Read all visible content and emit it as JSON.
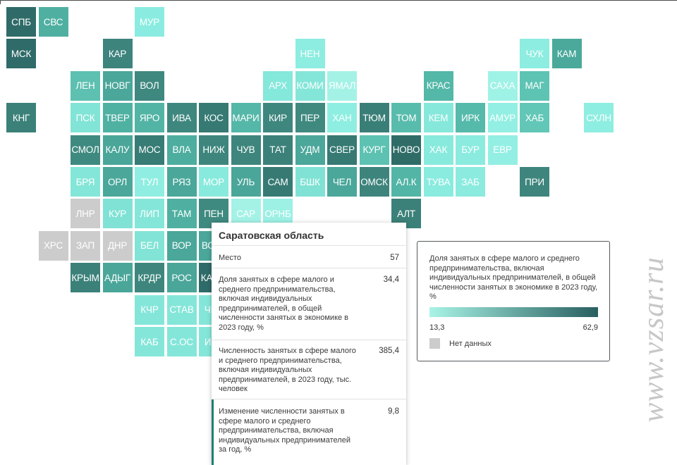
{
  "colors": {
    "scale_low": "#a8f3e6",
    "scale_high": "#295f60",
    "no_data": "#cccccc"
  },
  "map": {
    "regions": [
      {
        "code": "СПБ",
        "row": 0,
        "col": 0,
        "color": "#2f6b68"
      },
      {
        "code": "СВС",
        "row": 0,
        "col": 1,
        "color": "#4fb0a1"
      },
      {
        "code": "МУР",
        "row": 0,
        "col": 4,
        "color": "#8aece0"
      },
      {
        "code": "МСК",
        "row": 1,
        "col": 0,
        "color": "#2f6b68"
      },
      {
        "code": "КАР",
        "row": 1,
        "col": 3,
        "color": "#3d847d"
      },
      {
        "code": "НЕН",
        "row": 1,
        "col": 9,
        "color": "#8cede0"
      },
      {
        "code": "ЧУК",
        "row": 1,
        "col": 16,
        "color": "#8cede0"
      },
      {
        "code": "КАМ",
        "row": 1,
        "col": 17,
        "color": "#4aa99b"
      },
      {
        "code": "ЛЕН",
        "row": 2,
        "col": 2,
        "color": "#5dc0b0"
      },
      {
        "code": "НОВГ",
        "row": 2,
        "col": 3,
        "color": "#4aa79a"
      },
      {
        "code": "ВОЛ",
        "row": 2,
        "col": 4,
        "color": "#3e887f"
      },
      {
        "code": "АРХ",
        "row": 2,
        "col": 8,
        "color": "#84e8db"
      },
      {
        "code": "КОМИ",
        "row": 2,
        "col": 9,
        "color": "#84e6d9"
      },
      {
        "code": "ЯМАЛ",
        "row": 2,
        "col": 10,
        "color": "#a4f2e6"
      },
      {
        "code": "КРАС",
        "row": 2,
        "col": 13,
        "color": "#53b8a8"
      },
      {
        "code": "САХА",
        "row": 2,
        "col": 15,
        "color": "#9ff2e6"
      },
      {
        "code": "МАГ",
        "row": 2,
        "col": 16,
        "color": "#5dc4b4"
      },
      {
        "code": "КНГ",
        "row": 3,
        "col": 0,
        "color": "#3b8179"
      },
      {
        "code": "ПСК",
        "row": 3,
        "col": 2,
        "color": "#82e4d6"
      },
      {
        "code": "ТВЕР",
        "row": 3,
        "col": 3,
        "color": "#4fb1a2"
      },
      {
        "code": "ЯРО",
        "row": 3,
        "col": 4,
        "color": "#52b4a5"
      },
      {
        "code": "ИВА",
        "row": 3,
        "col": 5,
        "color": "#3e877e"
      },
      {
        "code": "КОС",
        "row": 3,
        "col": 6,
        "color": "#367a73"
      },
      {
        "code": "МАРИ",
        "row": 3,
        "col": 7,
        "color": "#54b7a8"
      },
      {
        "code": "КИР",
        "row": 3,
        "col": 8,
        "color": "#3e877e"
      },
      {
        "code": "ПЕР",
        "row": 3,
        "col": 9,
        "color": "#40897f"
      },
      {
        "code": "ХАН",
        "row": 3,
        "col": 10,
        "color": "#8eeee1"
      },
      {
        "code": "ТЮМ",
        "row": 3,
        "col": 11,
        "color": "#3a7f77"
      },
      {
        "code": "ТОМ",
        "row": 3,
        "col": 12,
        "color": "#58bcac"
      },
      {
        "code": "КЕМ",
        "row": 3,
        "col": 13,
        "color": "#86e8db"
      },
      {
        "code": "ИРК",
        "row": 3,
        "col": 14,
        "color": "#56baab"
      },
      {
        "code": "АМУР",
        "row": 3,
        "col": 15,
        "color": "#93efe3"
      },
      {
        "code": "ХАБ",
        "row": 3,
        "col": 16,
        "color": "#62c7b7"
      },
      {
        "code": "СХЛН",
        "row": 3,
        "col": 18,
        "color": "#8eeee1"
      },
      {
        "code": "СМОЛ",
        "row": 4,
        "col": 2,
        "color": "#3f8a80"
      },
      {
        "code": "КАЛУ",
        "row": 4,
        "col": 3,
        "color": "#4aa699"
      },
      {
        "code": "МОС",
        "row": 4,
        "col": 4,
        "color": "#377c75"
      },
      {
        "code": "ВЛА",
        "row": 4,
        "col": 5,
        "color": "#4dae9f"
      },
      {
        "code": "НИЖ",
        "row": 4,
        "col": 6,
        "color": "#3e867d"
      },
      {
        "code": "ЧУВ",
        "row": 4,
        "col": 7,
        "color": "#3e867d"
      },
      {
        "code": "ТАТ",
        "row": 4,
        "col": 8,
        "color": "#3b8179"
      },
      {
        "code": "УДМ",
        "row": 4,
        "col": 9,
        "color": "#4ba79a"
      },
      {
        "code": "СВЕР",
        "row": 4,
        "col": 10,
        "color": "#367a73"
      },
      {
        "code": "КУРГ",
        "row": 4,
        "col": 11,
        "color": "#5dc2b2"
      },
      {
        "code": "НОВО",
        "row": 4,
        "col": 12,
        "color": "#2f6c68"
      },
      {
        "code": "ХАК",
        "row": 4,
        "col": 13,
        "color": "#88eadd"
      },
      {
        "code": "БУР",
        "row": 4,
        "col": 14,
        "color": "#8bebdf"
      },
      {
        "code": "ЕВР",
        "row": 4,
        "col": 15,
        "color": "#93efe3"
      },
      {
        "code": "БРЯ",
        "row": 5,
        "col": 2,
        "color": "#83e6d8"
      },
      {
        "code": "ОРЛ",
        "row": 5,
        "col": 3,
        "color": "#4aa79a"
      },
      {
        "code": "ТУЛ",
        "row": 5,
        "col": 4,
        "color": "#8feee1"
      },
      {
        "code": "РЯЗ",
        "row": 5,
        "col": 5,
        "color": "#4aa79a"
      },
      {
        "code": "МОР",
        "row": 5,
        "col": 6,
        "color": "#88eadd"
      },
      {
        "code": "УЛЬ",
        "row": 5,
        "col": 7,
        "color": "#4aa699"
      },
      {
        "code": "САМ",
        "row": 5,
        "col": 8,
        "color": "#367a73"
      },
      {
        "code": "БШК",
        "row": 5,
        "col": 9,
        "color": "#7fe2d4"
      },
      {
        "code": "ЧЕЛ",
        "row": 5,
        "col": 10,
        "color": "#4aa79a"
      },
      {
        "code": "ОМСК",
        "row": 5,
        "col": 11,
        "color": "#3d847c"
      },
      {
        "code": "АЛ.К",
        "row": 5,
        "col": 12,
        "color": "#52b5a6"
      },
      {
        "code": "ТУВА",
        "row": 5,
        "col": 13,
        "color": "#8aebdf"
      },
      {
        "code": "ЗАБ",
        "row": 5,
        "col": 14,
        "color": "#8bebdf"
      },
      {
        "code": "ПРИ",
        "row": 5,
        "col": 16,
        "color": "#3e867d"
      },
      {
        "code": "ЛНР",
        "row": 6,
        "col": 2,
        "color": "#cccccc"
      },
      {
        "code": "КУР",
        "row": 6,
        "col": 3,
        "color": "#7fe2d4"
      },
      {
        "code": "ЛИП",
        "row": 6,
        "col": 4,
        "color": "#84e6d9"
      },
      {
        "code": "ТАМ",
        "row": 6,
        "col": 5,
        "color": "#4fb0a1"
      },
      {
        "code": "ПЕН",
        "row": 6,
        "col": 6,
        "color": "#3f8a80"
      },
      {
        "code": "САР",
        "row": 6,
        "col": 7,
        "color": "#a4f2e6"
      },
      {
        "code": "ОРНБ",
        "row": 6,
        "col": 8,
        "color": "#9cf0e4"
      },
      {
        "code": "АЛТ",
        "row": 6,
        "col": 12,
        "color": "#3b8179"
      },
      {
        "code": "ХРС",
        "row": 7,
        "col": 1,
        "color": "#cccccc"
      },
      {
        "code": "ЗАП",
        "row": 7,
        "col": 2,
        "color": "#cccccc"
      },
      {
        "code": "ДНР",
        "row": 7,
        "col": 3,
        "color": "#cccccc"
      },
      {
        "code": "БЕЛ",
        "row": 7,
        "col": 4,
        "color": "#82e4d6"
      },
      {
        "code": "ВОР",
        "row": 7,
        "col": 5,
        "color": "#4aa79a"
      },
      {
        "code": "ВОЛГ",
        "row": 7,
        "col": 6,
        "color": "#4aa79a"
      },
      {
        "code": "КРЫМ",
        "row": 8,
        "col": 2,
        "color": "#3b8179"
      },
      {
        "code": "АДЫГ",
        "row": 8,
        "col": 3,
        "color": "#4aa699"
      },
      {
        "code": "КРДР",
        "row": 8,
        "col": 4,
        "color": "#3e867d"
      },
      {
        "code": "РОС",
        "row": 8,
        "col": 5,
        "color": "#4aa699"
      },
      {
        "code": "КАЛМ",
        "row": 8,
        "col": 6,
        "color": "#2f6b68"
      },
      {
        "code": "КЧР",
        "row": 9,
        "col": 4,
        "color": "#84e6d9"
      },
      {
        "code": "СТАВ",
        "row": 9,
        "col": 5,
        "color": "#84e6d9"
      },
      {
        "code": "ЧЕЧ",
        "row": 9,
        "col": 6,
        "color": "#84e6d9"
      },
      {
        "code": "КАБ",
        "row": 10,
        "col": 4,
        "color": "#84e6d9"
      },
      {
        "code": "С.ОС",
        "row": 10,
        "col": 5,
        "color": "#84e6d9"
      },
      {
        "code": "ИНГ",
        "row": 10,
        "col": 6,
        "color": "#84e6d9"
      }
    ],
    "highlighted": "САР"
  },
  "tooltip": {
    "title": "Саратовская область",
    "rows": [
      {
        "label": "Место",
        "value": "57"
      },
      {
        "label": "Доля занятых в сфере малого и среднего предпринимательства, включая индивидуальных предпринимателей, в общей численности занятых в экономике в 2023 году, %",
        "value": "34,4"
      },
      {
        "label": "Численность занятых в сфере малого и среднего предпринимательства, включая индивидуальных предпринимателей, в 2023 году, тыс. человек",
        "value": "385,4"
      },
      {
        "label": "Изменение численности занятых в сфере малого и среднего предпринимательства, включая индивидуальных предпринимателей за год, %",
        "value": "9,8"
      }
    ]
  },
  "legend": {
    "title": "Доля занятых в сфере малого и среднего предпринимательства, включая индивидуальных предпринимателей, в общей численности занятых в экономике в 2023 году, %",
    "min": "13,3",
    "max": "62,9",
    "no_data_label": "Нет данных"
  },
  "watermark": "www.vzsar.ru"
}
